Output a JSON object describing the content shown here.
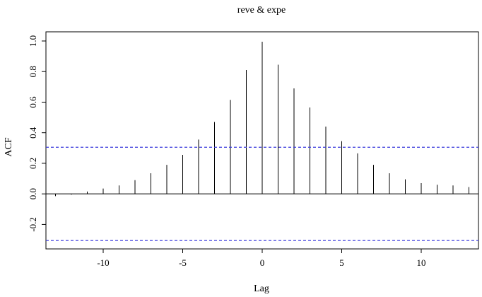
{
  "chart_data": {
    "type": "bar",
    "title": "reve & expe",
    "xlabel": "Lag",
    "ylabel": "ACF",
    "xlim": [
      -13.6,
      13.6
    ],
    "ylim": [
      -0.36,
      1.06
    ],
    "x_ticks": [
      -10,
      -5,
      0,
      5,
      10
    ],
    "x_tick_labels": [
      "-10",
      "-5",
      "0",
      "5",
      "10"
    ],
    "y_ticks": [
      -0.2,
      0.0,
      0.2,
      0.4,
      0.6,
      0.8,
      1.0
    ],
    "y_tick_labels": [
      "-0.2",
      "0.0",
      "0.2",
      "0.4",
      "0.6",
      "0.8",
      "1.0"
    ],
    "lags": [
      -13,
      -12,
      -11,
      -10,
      -9,
      -8,
      -7,
      -6,
      -5,
      -4,
      -3,
      -2,
      -1,
      0,
      1,
      2,
      3,
      4,
      5,
      6,
      7,
      8,
      9,
      10,
      11,
      12,
      13
    ],
    "values": [
      -0.015,
      -0.005,
      0.015,
      0.035,
      0.055,
      0.09,
      0.135,
      0.19,
      0.255,
      0.355,
      0.47,
      0.615,
      0.81,
      0.995,
      0.845,
      0.69,
      0.565,
      0.44,
      0.345,
      0.265,
      0.19,
      0.135,
      0.095,
      0.07,
      0.06,
      0.055,
      0.045
    ],
    "confidence_bounds": [
      0.305,
      -0.305
    ],
    "colors": {
      "bars": "#000000",
      "confidence_lines": "#3b3bdc",
      "axes": "#000000"
    }
  }
}
